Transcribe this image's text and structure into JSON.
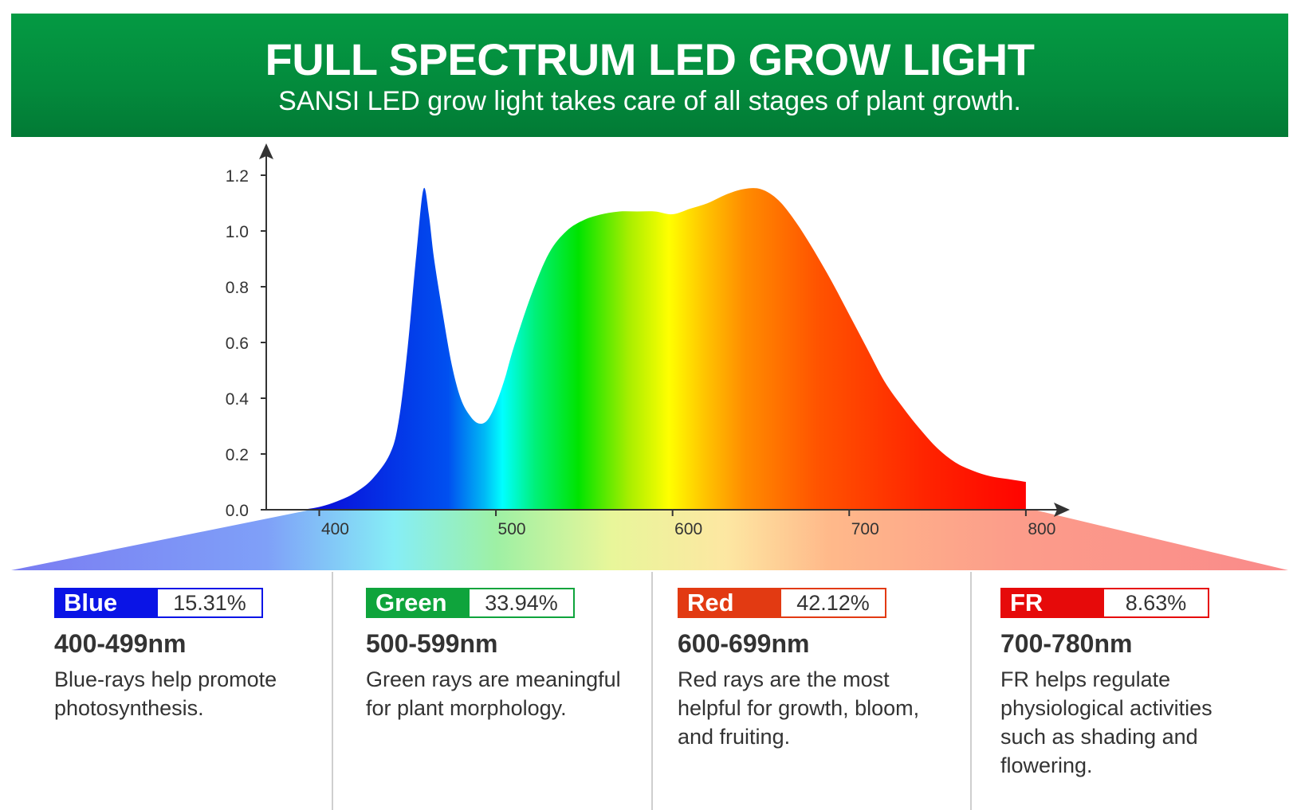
{
  "header": {
    "title": "FULL SPECTRUM LED GROW LIGHT",
    "subtitle": "SANSI LED grow light takes care of all stages of plant growth."
  },
  "chart_data": {
    "type": "area",
    "title": "",
    "xlabel": "",
    "ylabel": "",
    "xlim": [
      370,
      800
    ],
    "ylim": [
      0,
      1.3
    ],
    "x_ticks": [
      "400",
      "500",
      "600",
      "700",
      "800"
    ],
    "y_ticks": [
      "0.0",
      "0.2",
      "0.4",
      "0.6",
      "0.8",
      "1.0",
      "1.2"
    ],
    "grid": false,
    "series": [
      {
        "x": [
          390,
          400,
          410,
          420,
          430,
          440,
          445,
          450,
          455,
          459,
          462,
          465,
          470,
          475,
          480,
          485,
          490,
          495,
          500,
          505,
          510,
          520,
          530,
          540,
          550,
          560,
          570,
          580,
          590,
          600,
          610,
          620,
          630,
          640,
          650,
          660,
          670,
          680,
          690,
          700,
          710,
          720,
          730,
          740,
          750,
          760,
          770,
          780,
          790,
          800
        ],
        "y": [
          0.0,
          0.01,
          0.03,
          0.06,
          0.11,
          0.2,
          0.32,
          0.58,
          0.92,
          1.15,
          1.06,
          0.9,
          0.7,
          0.52,
          0.4,
          0.34,
          0.31,
          0.32,
          0.38,
          0.47,
          0.58,
          0.77,
          0.92,
          1.0,
          1.04,
          1.06,
          1.07,
          1.07,
          1.07,
          1.06,
          1.08,
          1.1,
          1.13,
          1.15,
          1.15,
          1.11,
          1.03,
          0.93,
          0.82,
          0.7,
          0.58,
          0.46,
          0.37,
          0.29,
          0.22,
          0.17,
          0.14,
          0.12,
          0.11,
          0.1
        ]
      }
    ]
  },
  "legend": [
    {
      "name": "Blue",
      "percent": "15.31%",
      "range": "400-499nm",
      "description": "Blue-rays help promote photosynthesis.",
      "color": "#0a14e6"
    },
    {
      "name": "Green",
      "percent": "33.94%",
      "range": "500-599nm",
      "description": "Green rays are meaningful for plant morphology.",
      "color": "#0fa43c"
    },
    {
      "name": "Red",
      "percent": "42.12%",
      "range": "600-699nm",
      "description": "Red rays are the most helpful for growth, bloom, and fruiting.",
      "color": "#e23a12"
    },
    {
      "name": "FR",
      "percent": "8.63%",
      "range": "700-780nm",
      "description": "FR helps regulate physiological activities such as shading and flowering.",
      "color": "#e60a0a"
    }
  ]
}
